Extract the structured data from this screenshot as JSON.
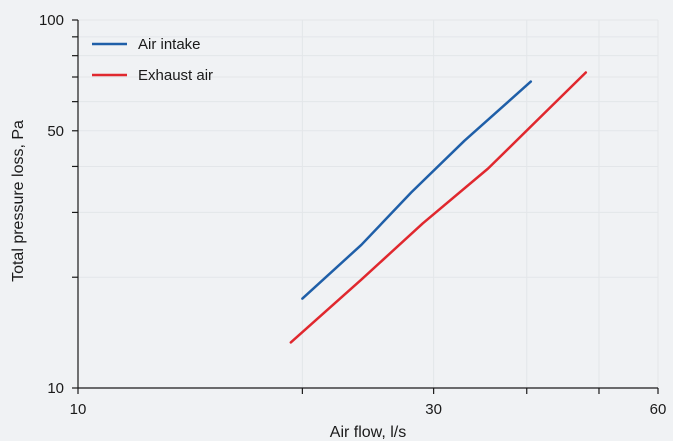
{
  "chart_data": {
    "type": "line",
    "xlabel": "Air flow, l/s",
    "ylabel": "Total pressure loss, Pa",
    "x_scale": "log",
    "y_scale": "log",
    "xlim": [
      10,
      60
    ],
    "ylim": [
      10,
      100
    ],
    "x_tick_labels": [
      "10",
      "30",
      "60"
    ],
    "y_tick_labels": [
      "10",
      "50",
      "100"
    ],
    "grid": true,
    "legend_position": "top-left",
    "series": [
      {
        "name": "Air intake",
        "color": "#1f5fa8",
        "x": [
          20,
          24,
          28,
          33,
          40.5
        ],
        "y": [
          17.5,
          24.5,
          34,
          47,
          68
        ]
      },
      {
        "name": "Exhaust air",
        "color": "#e0282e",
        "x": [
          19.3,
          24,
          29,
          35.5,
          48
        ],
        "y": [
          13.3,
          19.7,
          28,
          39.5,
          72
        ]
      }
    ]
  }
}
